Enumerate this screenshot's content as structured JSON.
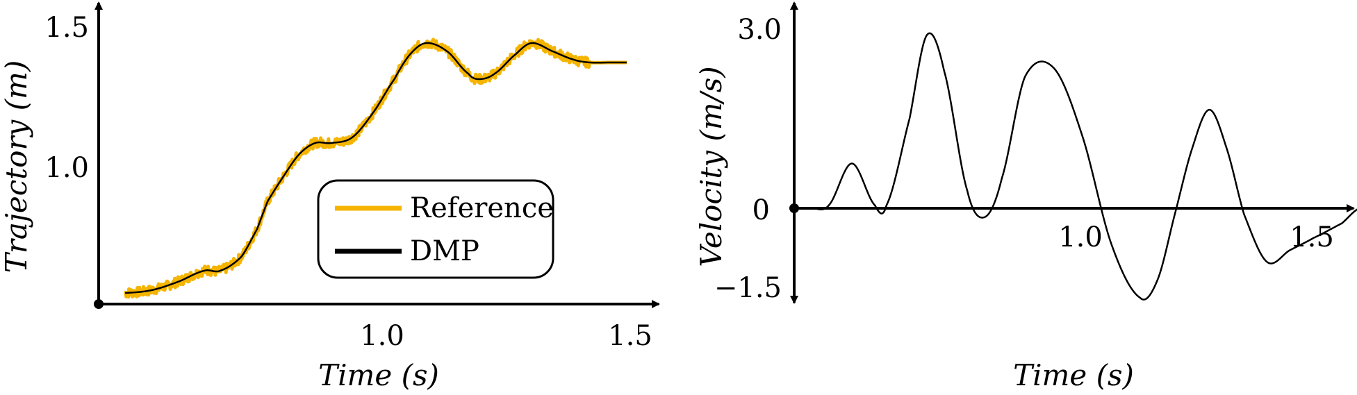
{
  "chart_data": [
    {
      "type": "line",
      "xlabel": "Time (s)",
      "ylabel": "Trajectory (m)",
      "xlim": [
        0.5,
        1.5
      ],
      "ylim": [
        0.5,
        1.5
      ],
      "xticks": [
        {
          "value": 1.0,
          "label": "1.0"
        },
        {
          "value": 1.5,
          "label": "1.5"
        }
      ],
      "yticks": [
        {
          "value": 1.0,
          "label": "1.0"
        },
        {
          "value": 1.5,
          "label": "1.5"
        }
      ],
      "grid": false,
      "legend": {
        "placement": "bottom-right",
        "entries": [
          "Reference",
          "DMP"
        ]
      },
      "series": [
        {
          "name": "Reference",
          "color": "#F5B400",
          "style": "noisy",
          "x": [
            0.55,
            0.6,
            0.65,
            0.7,
            0.73,
            0.77,
            0.8,
            0.82,
            0.85,
            0.88,
            0.91,
            0.94,
            0.98,
            1.02,
            1.06,
            1.09,
            1.12,
            1.16,
            1.2,
            1.22,
            1.25,
            1.29,
            1.32,
            1.36,
            1.4,
            1.43,
            1.47,
            1.5
          ],
          "y": [
            0.54,
            0.55,
            0.58,
            0.62,
            0.62,
            0.67,
            0.77,
            0.87,
            0.96,
            1.04,
            1.08,
            1.08,
            1.1,
            1.19,
            1.31,
            1.4,
            1.44,
            1.41,
            1.33,
            1.31,
            1.33,
            1.4,
            1.44,
            1.41,
            1.38,
            1.37,
            1.37,
            1.37
          ]
        },
        {
          "name": "DMP",
          "color": "#000000",
          "style": "smooth",
          "x": [
            0.55,
            0.6,
            0.65,
            0.7,
            0.73,
            0.77,
            0.8,
            0.82,
            0.85,
            0.88,
            0.91,
            0.94,
            0.98,
            1.02,
            1.06,
            1.09,
            1.12,
            1.16,
            1.2,
            1.22,
            1.25,
            1.29,
            1.32,
            1.36,
            1.4,
            1.43,
            1.47,
            1.5
          ],
          "y": [
            0.54,
            0.55,
            0.58,
            0.62,
            0.62,
            0.67,
            0.77,
            0.87,
            0.96,
            1.04,
            1.08,
            1.08,
            1.1,
            1.19,
            1.31,
            1.4,
            1.44,
            1.41,
            1.33,
            1.31,
            1.33,
            1.4,
            1.44,
            1.41,
            1.38,
            1.37,
            1.37,
            1.37
          ]
        }
      ]
    },
    {
      "type": "line",
      "xlabel": "Time (s)",
      "ylabel": "Velocity (m/s)",
      "xlim": [
        0.5,
        1.5
      ],
      "ylim": [
        -1.5,
        3.0
      ],
      "xticks": [
        {
          "value": 1.0,
          "label": "1.0"
        },
        {
          "value": 1.5,
          "label": "1.5"
        }
      ],
      "yticks": [
        {
          "value": 3.0,
          "label": "3.0"
        },
        {
          "value": 0,
          "label": "0"
        },
        {
          "value": -1.5,
          "label": "−1.5"
        }
      ],
      "grid": false,
      "series": [
        {
          "color": "#000000",
          "x": [
            0.53,
            0.56,
            0.6,
            0.64,
            0.66,
            0.7,
            0.73,
            0.76,
            0.8,
            0.83,
            0.86,
            0.9,
            0.95,
            1.0,
            1.05,
            1.1,
            1.13,
            1.16,
            1.19,
            1.22,
            1.25,
            1.28,
            1.32,
            1.36,
            1.4,
            1.45,
            1.48
          ],
          "y": [
            0.0,
            0.05,
            0.75,
            0.05,
            0.05,
            1.5,
            2.9,
            2.3,
            0.3,
            -0.15,
            0.5,
            2.2,
            2.35,
            1.2,
            -0.6,
            -1.5,
            -1.2,
            -0.1,
            1.0,
            1.65,
            1.0,
            -0.1,
            -0.9,
            -0.7,
            -0.5,
            -0.25,
            0.0
          ]
        }
      ]
    }
  ]
}
